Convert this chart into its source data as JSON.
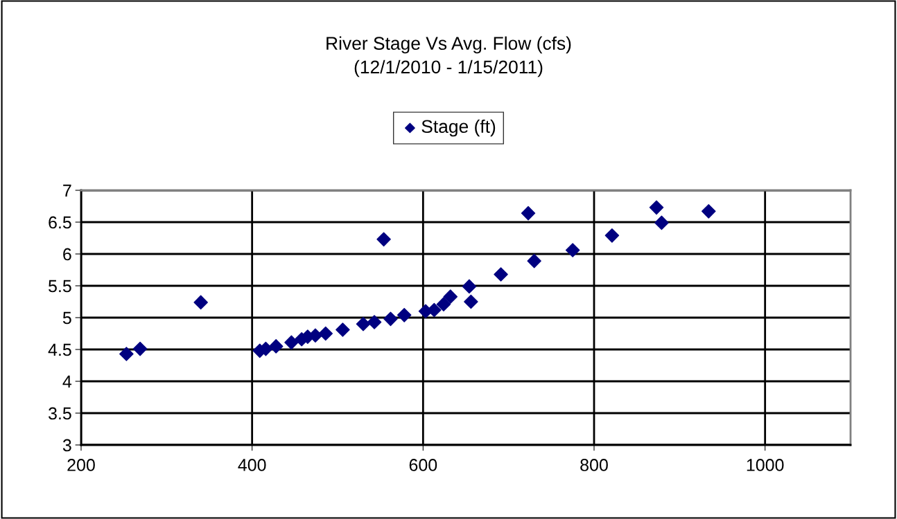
{
  "chart_data": {
    "type": "scatter",
    "title": "River Stage Vs Avg. Flow (cfs)\n(12/1/2010 - 1/15/2011)",
    "series": [
      {
        "name": "Stage (ft)",
        "color": "#000080",
        "x": [
          253,
          269,
          340,
          409,
          416,
          428,
          446,
          458,
          465,
          474,
          486,
          506,
          530,
          543,
          562,
          578,
          603,
          613,
          624,
          632,
          654,
          656,
          554,
          691,
          723,
          730,
          775,
          821,
          873,
          879,
          934
        ],
        "values": [
          4.43,
          4.51,
          5.24,
          4.48,
          4.51,
          4.55,
          4.61,
          4.66,
          4.7,
          4.72,
          4.75,
          4.81,
          4.9,
          4.93,
          4.98,
          5.04,
          5.1,
          5.12,
          5.21,
          5.33,
          5.49,
          5.25,
          6.23,
          5.68,
          6.64,
          5.89,
          6.06,
          6.29,
          6.73,
          6.49,
          6.67
        ]
      }
    ],
    "marker": "diamond",
    "legend": "top",
    "grid": true,
    "xlim": [
      200,
      1100
    ],
    "xticks": [
      200,
      400,
      600,
      800,
      1000
    ],
    "ylim": [
      3,
      7
    ],
    "yticks": [
      3,
      3.5,
      4,
      4.5,
      5,
      5.5,
      6,
      6.5,
      7
    ]
  }
}
